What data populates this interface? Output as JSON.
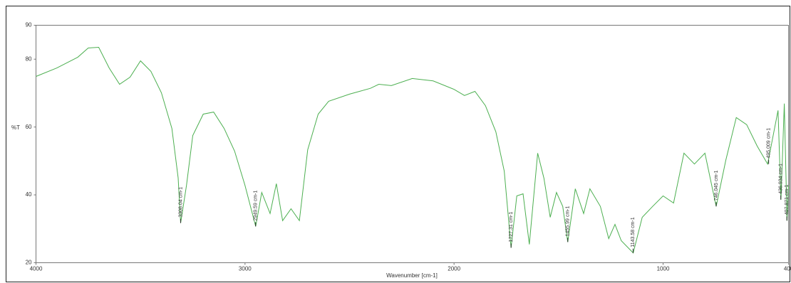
{
  "chart_data": {
    "type": "line",
    "x_label": "Wavenumber [cm-1]",
    "y_label": "%T",
    "xlim": [
      4000,
      400
    ],
    "ylim": [
      20,
      90
    ],
    "xticks": [
      4000,
      3000,
      2000,
      1000,
      400
    ],
    "yticks": [
      20,
      40,
      60,
      80,
      90
    ],
    "x": [
      4000,
      3900,
      3800,
      3750,
      3700,
      3650,
      3600,
      3550,
      3500,
      3450,
      3400,
      3350,
      3320,
      3308,
      3280,
      3250,
      3200,
      3150,
      3100,
      3050,
      3000,
      2949,
      2920,
      2880,
      2850,
      2820,
      2780,
      2740,
      2700,
      2650,
      2600,
      2500,
      2400,
      2360,
      2300,
      2200,
      2100,
      2000,
      1950,
      1900,
      1850,
      1800,
      1760,
      1727,
      1700,
      1670,
      1640,
      1600,
      1570,
      1540,
      1510,
      1480,
      1456,
      1420,
      1380,
      1350,
      1300,
      1260,
      1230,
      1200,
      1143,
      1100,
      1050,
      1000,
      950,
      900,
      850,
      800,
      746,
      700,
      650,
      600,
      550,
      500,
      450,
      436,
      420,
      407,
      400
    ],
    "series": [
      {
        "name": "%T",
        "color": "#4caf50",
        "values": [
          74.9,
          77.4,
          80.6,
          83.3,
          83.5,
          77.4,
          72.6,
          74.7,
          79.5,
          76.4,
          70.1,
          59.6,
          45,
          31.7,
          42.8,
          57.5,
          63.8,
          64.4,
          59.6,
          52.9,
          42.8,
          30.7,
          40.7,
          34.5,
          43.3,
          32.4,
          35.9,
          32.4,
          53.3,
          63.8,
          67.6,
          69.7,
          71.4,
          72.6,
          72.2,
          74.3,
          73.6,
          71.1,
          69.3,
          70.5,
          66.3,
          58.6,
          47,
          24.4,
          39.7,
          40.3,
          25.4,
          52.3,
          44.9,
          33.4,
          40.7,
          36.6,
          26.1,
          41.8,
          34.5,
          41.8,
          36.6,
          27.1,
          31.3,
          26.5,
          22.9,
          33.4,
          36.6,
          39.7,
          37.6,
          52.3,
          49.1,
          52.3,
          36.6,
          50.2,
          62.8,
          60.7,
          54.4,
          49.1,
          64.9,
          38.6,
          66.9,
          32.4,
          42.8
        ]
      }
    ],
    "annotations": [
      {
        "text": "3308.04 cm-1",
        "x": 3308.04,
        "y": 31.7
      },
      {
        "text": "2949.59 cm-1",
        "x": 2949.59,
        "y": 30.7
      },
      {
        "text": "1727.31 cm-1",
        "x": 1727.31,
        "y": 24.4
      },
      {
        "text": "1455.99 cm-1",
        "x": 1455.99,
        "y": 26.1
      },
      {
        "text": "1143.58 cm-1",
        "x": 1143.58,
        "y": 22.9
      },
      {
        "text": "746.045 cm-1",
        "x": 746.045,
        "y": 36.6
      },
      {
        "text": "495.009 cm-1",
        "x": 495.009,
        "y": 49.1
      },
      {
        "text": "436.934 cm-1",
        "x": 436.934,
        "y": 38.6
      },
      {
        "text": "407.871 cm-1",
        "x": 407.871,
        "y": 32.4
      }
    ]
  }
}
